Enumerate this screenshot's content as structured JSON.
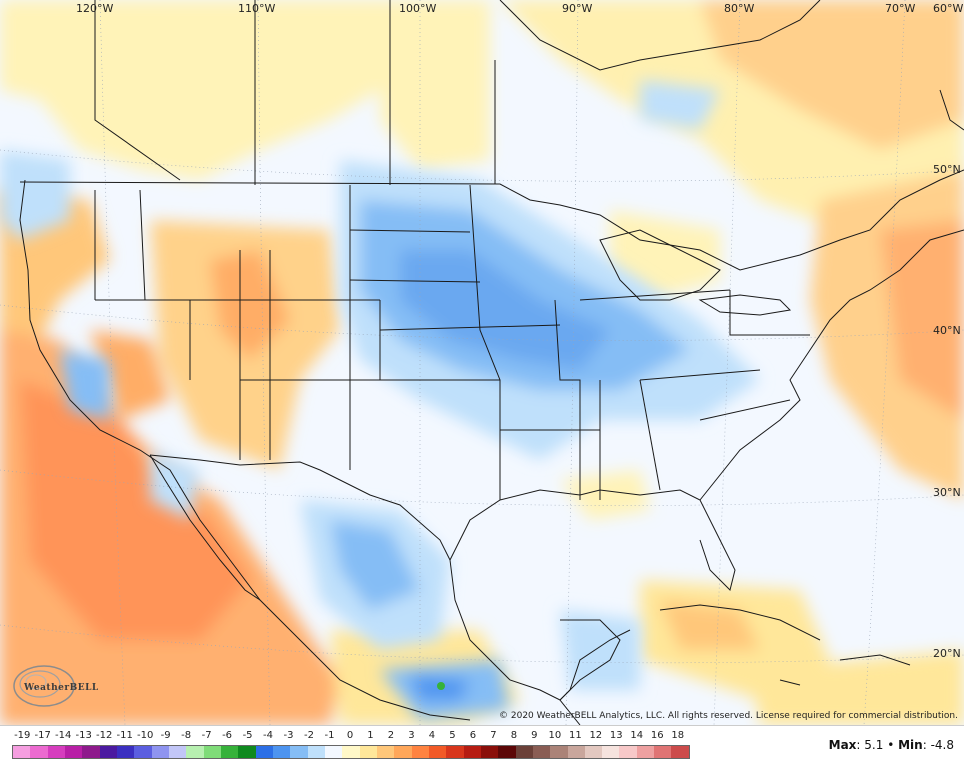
{
  "map": {
    "longitude_labels": [
      "120°W",
      "110°W",
      "100°W",
      "90°W",
      "80°W",
      "70°W",
      "60°W"
    ],
    "latitude_labels": [
      "50°N",
      "40°N",
      "30°N",
      "20°N"
    ]
  },
  "watermark": {
    "logo_text": "WeatherBELL"
  },
  "copyright": "© 2020 WeatherBELL Analytics, LLC. All rights reserved. License required for commercial distribution.",
  "legend": {
    "labels": [
      "-19",
      "-17",
      "-14",
      "-13",
      "-12",
      "-11",
      "-10",
      "-9",
      "-8",
      "-7",
      "-6",
      "-5",
      "-4",
      "-3",
      "-2",
      "-1",
      "0",
      "1",
      "2",
      "3",
      "4",
      "5",
      "6",
      "7",
      "8",
      "9",
      "10",
      "11",
      "12",
      "13",
      "14",
      "16",
      "18"
    ],
    "colors": [
      "#f59ee0",
      "#ec6ad0",
      "#d63dbe",
      "#b81fa6",
      "#8e1a8c",
      "#4b1aa0",
      "#3b2fc0",
      "#5b5ee0",
      "#8f94f0",
      "#c2c6f7",
      "#b7f0b0",
      "#7fdc78",
      "#36b23a",
      "#0f8a1f",
      "#2c6fe6",
      "#4d94f0",
      "#85bdf5",
      "#bfe0fb",
      "#f3f8ff",
      "#fff8c8",
      "#ffe79a",
      "#ffc77a",
      "#ffa75a",
      "#ff8340",
      "#f25a27",
      "#d8361c",
      "#b61c12",
      "#8a0f0a",
      "#5c0707",
      "#6b4038",
      "#8a5d54",
      "#ab8378",
      "#c9a69c",
      "#e3c8c0",
      "#f6e3de",
      "#f7c8c8",
      "#eea0a0",
      "#e07474",
      "#cc4b4b"
    ]
  },
  "stats": {
    "max_label": "Max",
    "max_value": "5.1",
    "separator": "•",
    "min_label": "Min",
    "min_value": "-4.8"
  }
}
